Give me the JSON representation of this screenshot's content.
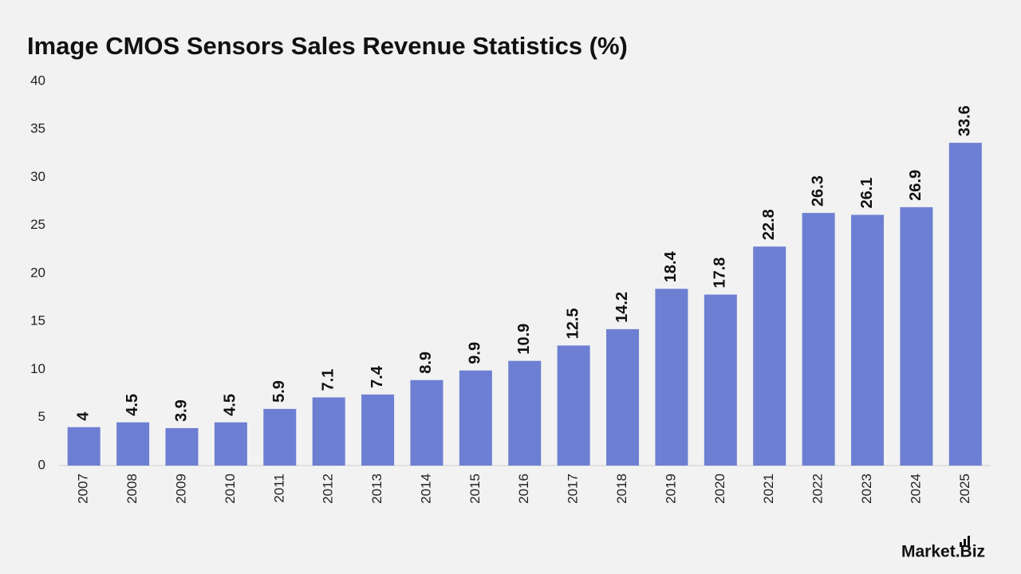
{
  "chart_data": {
    "type": "bar",
    "title": "Image CMOS Sensors Sales Revenue Statistics (%)",
    "categories": [
      "2007",
      "2008",
      "2009",
      "2010",
      "2011",
      "2012",
      "2013",
      "2014",
      "2015",
      "2016",
      "2017",
      "2018",
      "2019",
      "2020",
      "2021",
      "2022",
      "2023",
      "2024",
      "2025"
    ],
    "values": [
      4,
      4.5,
      3.9,
      4.5,
      5.9,
      7.1,
      7.4,
      8.9,
      9.9,
      10.9,
      12.5,
      14.2,
      18.4,
      17.8,
      22.8,
      26.3,
      26.1,
      26.9,
      33.6
    ],
    "color": "#6d7fd3",
    "ylim": [
      0,
      40
    ],
    "yticks": [
      0,
      5,
      10,
      15,
      20,
      25,
      30,
      35,
      40
    ],
    "grid": false
  },
  "brand": "Market.Biz"
}
